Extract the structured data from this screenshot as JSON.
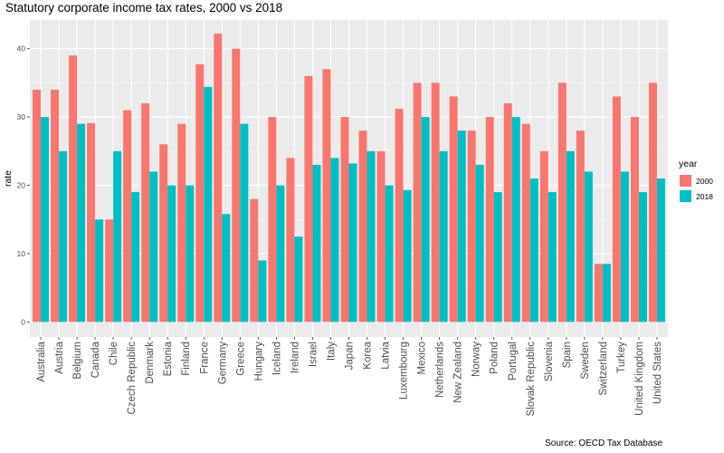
{
  "chart_data": {
    "type": "bar",
    "title": "Statutory corporate income tax rates, 2000 vs 2018",
    "xlabel": "",
    "ylabel": "rate",
    "ylim": [
      -2.2,
      44.2
    ],
    "yticks": [
      0,
      10,
      20,
      30,
      40
    ],
    "grid": true,
    "legend_title": "year",
    "legend_position": "right",
    "categories": [
      "Australia",
      "Austria",
      "Belgium",
      "Canada",
      "Chile",
      "Czech Republic",
      "Denmark",
      "Estonia",
      "Finland",
      "France",
      "Germany",
      "Greece",
      "Hungary",
      "Iceland",
      "Ireland",
      "Israel",
      "Italy",
      "Japan",
      "Korea",
      "Latvia",
      "Luxembourg",
      "Mexico",
      "Netherlands",
      "New Zealand",
      "Norway",
      "Poland",
      "Portugal",
      "Slovak Republic",
      "Slovenia",
      "Spain",
      "Sweden",
      "Switzerland",
      "Turkey",
      "United Kingdom",
      "United States"
    ],
    "series": [
      {
        "name": "2000",
        "color": "#F8766D",
        "values": [
          34,
          34,
          39,
          29.1,
          15,
          31,
          32,
          26,
          29,
          37.7,
          42.2,
          40,
          18,
          30,
          24,
          36,
          37,
          30,
          28,
          25,
          31.2,
          35,
          35,
          33,
          28,
          30,
          32,
          29,
          25,
          35,
          28,
          8.5,
          33,
          30,
          35
        ]
      },
      {
        "name": "2018",
        "color": "#00BFC4",
        "values": [
          30,
          25,
          29,
          15,
          25,
          19,
          22,
          20,
          20,
          34.4,
          15.8,
          29,
          9,
          20,
          12.5,
          23,
          24,
          23.2,
          25,
          20,
          19.3,
          30,
          25,
          28,
          23,
          19,
          30,
          21,
          19,
          25,
          22,
          8.5,
          22,
          19,
          21
        ]
      }
    ],
    "caption": "Source: OECD Tax Database"
  }
}
